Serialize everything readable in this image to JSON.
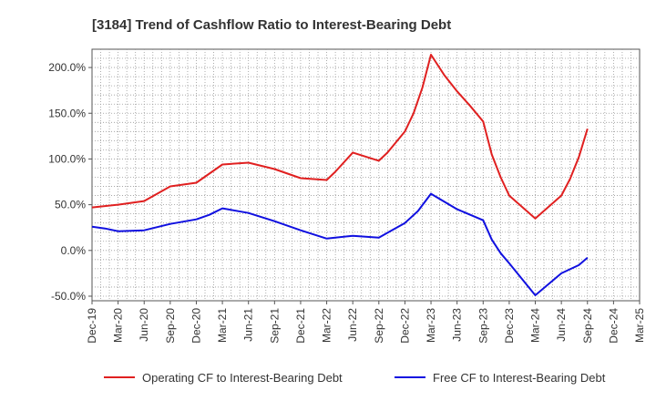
{
  "chart_data": {
    "type": "line",
    "title": "[3184]  Trend of Cashflow Ratio to Interest-Bearing Debt",
    "xlabel": "",
    "ylabel": "",
    "ylim": [
      -55,
      220
    ],
    "grid": true,
    "legend_position": "bottom",
    "y_ticks": [
      "-50.0%",
      "0.0%",
      "50.0%",
      "100.0%",
      "150.0%",
      "200.0%"
    ],
    "y_tick_values": [
      -50,
      0,
      50,
      100,
      150,
      200
    ],
    "x_tick_labels": [
      "Dec-19",
      "Mar-20",
      "Jun-20",
      "Sep-20",
      "Dec-20",
      "Mar-21",
      "Jun-21",
      "Sep-21",
      "Dec-21",
      "Mar-22",
      "Jun-22",
      "Sep-22",
      "Dec-22",
      "Mar-23",
      "Jun-23",
      "Sep-23",
      "Dec-23",
      "Mar-24",
      "Jun-24",
      "Sep-24",
      "Dec-24",
      "Mar-25"
    ],
    "series": [
      {
        "name": "Operating CF to Interest-Bearing Debt",
        "color": "#e02020",
        "values": [
          [
            0,
            47
          ],
          [
            1,
            50
          ],
          [
            2,
            54
          ],
          [
            3,
            70
          ],
          [
            4,
            74
          ],
          [
            5,
            94
          ],
          [
            6,
            96
          ],
          [
            7,
            89
          ],
          [
            8,
            79
          ],
          [
            9,
            77
          ],
          [
            9.33,
            86
          ],
          [
            10,
            107
          ],
          [
            11,
            98
          ],
          [
            11.33,
            107
          ],
          [
            12,
            130
          ],
          [
            12.33,
            150
          ],
          [
            12.67,
            178
          ],
          [
            13,
            214
          ],
          [
            13.5,
            192
          ],
          [
            14,
            174
          ],
          [
            14.5,
            158
          ],
          [
            15,
            141
          ],
          [
            15.33,
            105
          ],
          [
            15.67,
            80
          ],
          [
            16,
            60
          ],
          [
            17,
            35
          ],
          [
            18,
            60
          ],
          [
            18.33,
            78
          ],
          [
            18.67,
            102
          ],
          [
            19,
            133
          ]
        ]
      },
      {
        "name": "Free CF to Interest-Bearing Debt",
        "color": "#1010e0",
        "values": [
          [
            0,
            26
          ],
          [
            0.5,
            24
          ],
          [
            1,
            21
          ],
          [
            2,
            22
          ],
          [
            3,
            29
          ],
          [
            4,
            34
          ],
          [
            4.5,
            39
          ],
          [
            5,
            46
          ],
          [
            6,
            41
          ],
          [
            7,
            32
          ],
          [
            8,
            22
          ],
          [
            9,
            13
          ],
          [
            10,
            16
          ],
          [
            11,
            14
          ],
          [
            12,
            30
          ],
          [
            12.5,
            43
          ],
          [
            13,
            62
          ],
          [
            14,
            45
          ],
          [
            15,
            33
          ],
          [
            15.33,
            12
          ],
          [
            15.67,
            -3
          ],
          [
            16,
            -14
          ],
          [
            17,
            -49
          ],
          [
            18,
            -25
          ],
          [
            18.67,
            -16
          ],
          [
            19,
            -8
          ]
        ]
      }
    ]
  }
}
